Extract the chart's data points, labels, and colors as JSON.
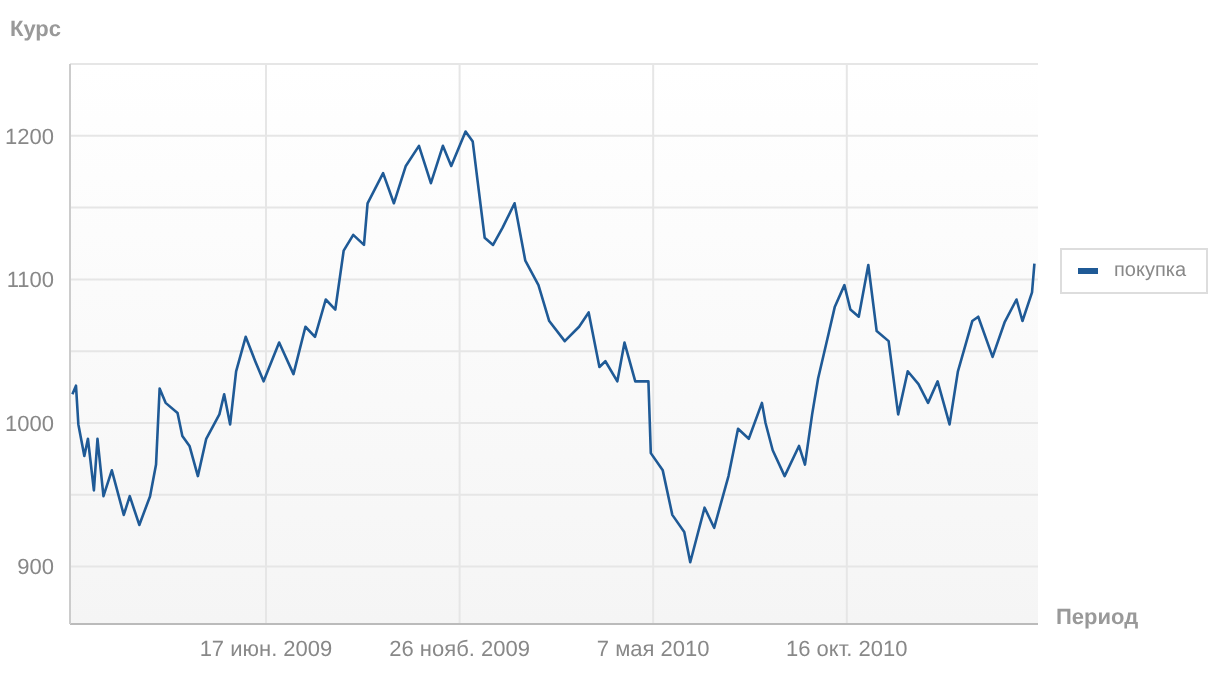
{
  "chart_data": {
    "type": "line",
    "xlabel": "Период",
    "ylabel": "Курс",
    "x": [
      "2009-01-06",
      "2009-01-09",
      "2009-01-11",
      "2009-01-16",
      "2009-01-19",
      "2009-01-24",
      "2009-01-27",
      "2009-02-01",
      "2009-02-08",
      "2009-02-18",
      "2009-02-23",
      "2009-03-03",
      "2009-03-12",
      "2009-03-17",
      "2009-03-20",
      "2009-03-25",
      "2009-04-04",
      "2009-04-08",
      "2009-04-14",
      "2009-04-21",
      "2009-04-28",
      "2009-05-09",
      "2009-05-13",
      "2009-05-18",
      "2009-05-23",
      "2009-05-31",
      "2009-06-08",
      "2009-06-15",
      "2009-06-28",
      "2009-07-10",
      "2009-07-20",
      "2009-07-28",
      "2009-08-06",
      "2009-08-14",
      "2009-08-21",
      "2009-08-29",
      "2009-09-07",
      "2009-09-10",
      "2009-09-23",
      "2009-10-02",
      "2009-10-12",
      "2009-10-23",
      "2009-11-02",
      "2009-11-12",
      "2009-11-19",
      "2009-12-01",
      "2009-12-07",
      "2009-12-11",
      "2009-12-17",
      "2009-12-24",
      "2010-01-01",
      "2010-01-11",
      "2010-01-20",
      "2010-01-31",
      "2010-02-09",
      "2010-02-22",
      "2010-03-06",
      "2010-03-14",
      "2010-03-23",
      "2010-03-28",
      "2010-04-07",
      "2010-04-13",
      "2010-04-22",
      "2010-05-03",
      "2010-05-05",
      "2010-05-15",
      "2010-05-23",
      "2010-06-02",
      "2010-06-07",
      "2010-06-19",
      "2010-06-27",
      "2010-07-09",
      "2010-07-17",
      "2010-07-26",
      "2010-08-06",
      "2010-08-09",
      "2010-08-15",
      "2010-08-25",
      "2010-09-06",
      "2010-09-11",
      "2010-09-17",
      "2010-09-22",
      "2010-10-01",
      "2010-10-06",
      "2010-10-14",
      "2010-10-19",
      "2010-10-26",
      "2010-11-03",
      "2010-11-10",
      "2010-11-20",
      "2010-11-28",
      "2010-12-06",
      "2010-12-15",
      "2010-12-23",
      "2010-12-31",
      "2011-01-10",
      "2011-01-17",
      "2011-01-29",
      "2011-02-03",
      "2011-02-15",
      "2011-02-25",
      "2011-03-07",
      "2011-03-12",
      "2011-03-20",
      "2011-03-22"
    ],
    "series": [
      {
        "name": "покупка",
        "color": "#1f5a96",
        "values": [
          1020,
          1026,
          999,
          977,
          989,
          953,
          989,
          949,
          967,
          936,
          949,
          929,
          949,
          971,
          1024,
          1014,
          1007,
          991,
          984,
          963,
          989,
          1006,
          1020,
          999,
          1036,
          1060,
          1043,
          1029,
          1056,
          1034,
          1067,
          1060,
          1086,
          1079,
          1120,
          1131,
          1124,
          1153,
          1174,
          1153,
          1179,
          1193,
          1167,
          1193,
          1179,
          1203,
          1196,
          1169,
          1129,
          1124,
          1136,
          1153,
          1113,
          1096,
          1071,
          1057,
          1067,
          1077,
          1039,
          1043,
          1029,
          1056,
          1029,
          1029,
          979,
          967,
          936,
          924,
          903,
          941,
          927,
          963,
          996,
          989,
          1014,
          1000,
          981,
          963,
          984,
          971,
          1006,
          1031,
          1063,
          1081,
          1096,
          1079,
          1074,
          1110,
          1064,
          1057,
          1006,
          1036,
          1027,
          1014,
          1029,
          999,
          1036,
          1071,
          1074,
          1046,
          1070,
          1086,
          1071,
          1091,
          1111
        ]
      }
    ],
    "xlim": [
      "2009-01-04",
      "2011-03-25"
    ],
    "xticks": [
      {
        "value": "2009-06-17",
        "label": "17 июн. 2009"
      },
      {
        "value": "2009-11-26",
        "label": "26 нояб. 2009"
      },
      {
        "value": "2010-05-07",
        "label": "7 мая 2010"
      },
      {
        "value": "2010-10-16",
        "label": "16 окт. 2010"
      }
    ],
    "ylim": [
      860,
      1250
    ],
    "yticks": [
      900,
      {
        "value": 950,
        "label": null
      },
      1000,
      {
        "value": 1050,
        "label": null
      },
      1100,
      {
        "value": 1150,
        "label": null
      },
      1200,
      {
        "value": 1250,
        "label": null
      }
    ],
    "grid": true,
    "legend": "right",
    "marker": "none",
    "line_style": "solid"
  }
}
